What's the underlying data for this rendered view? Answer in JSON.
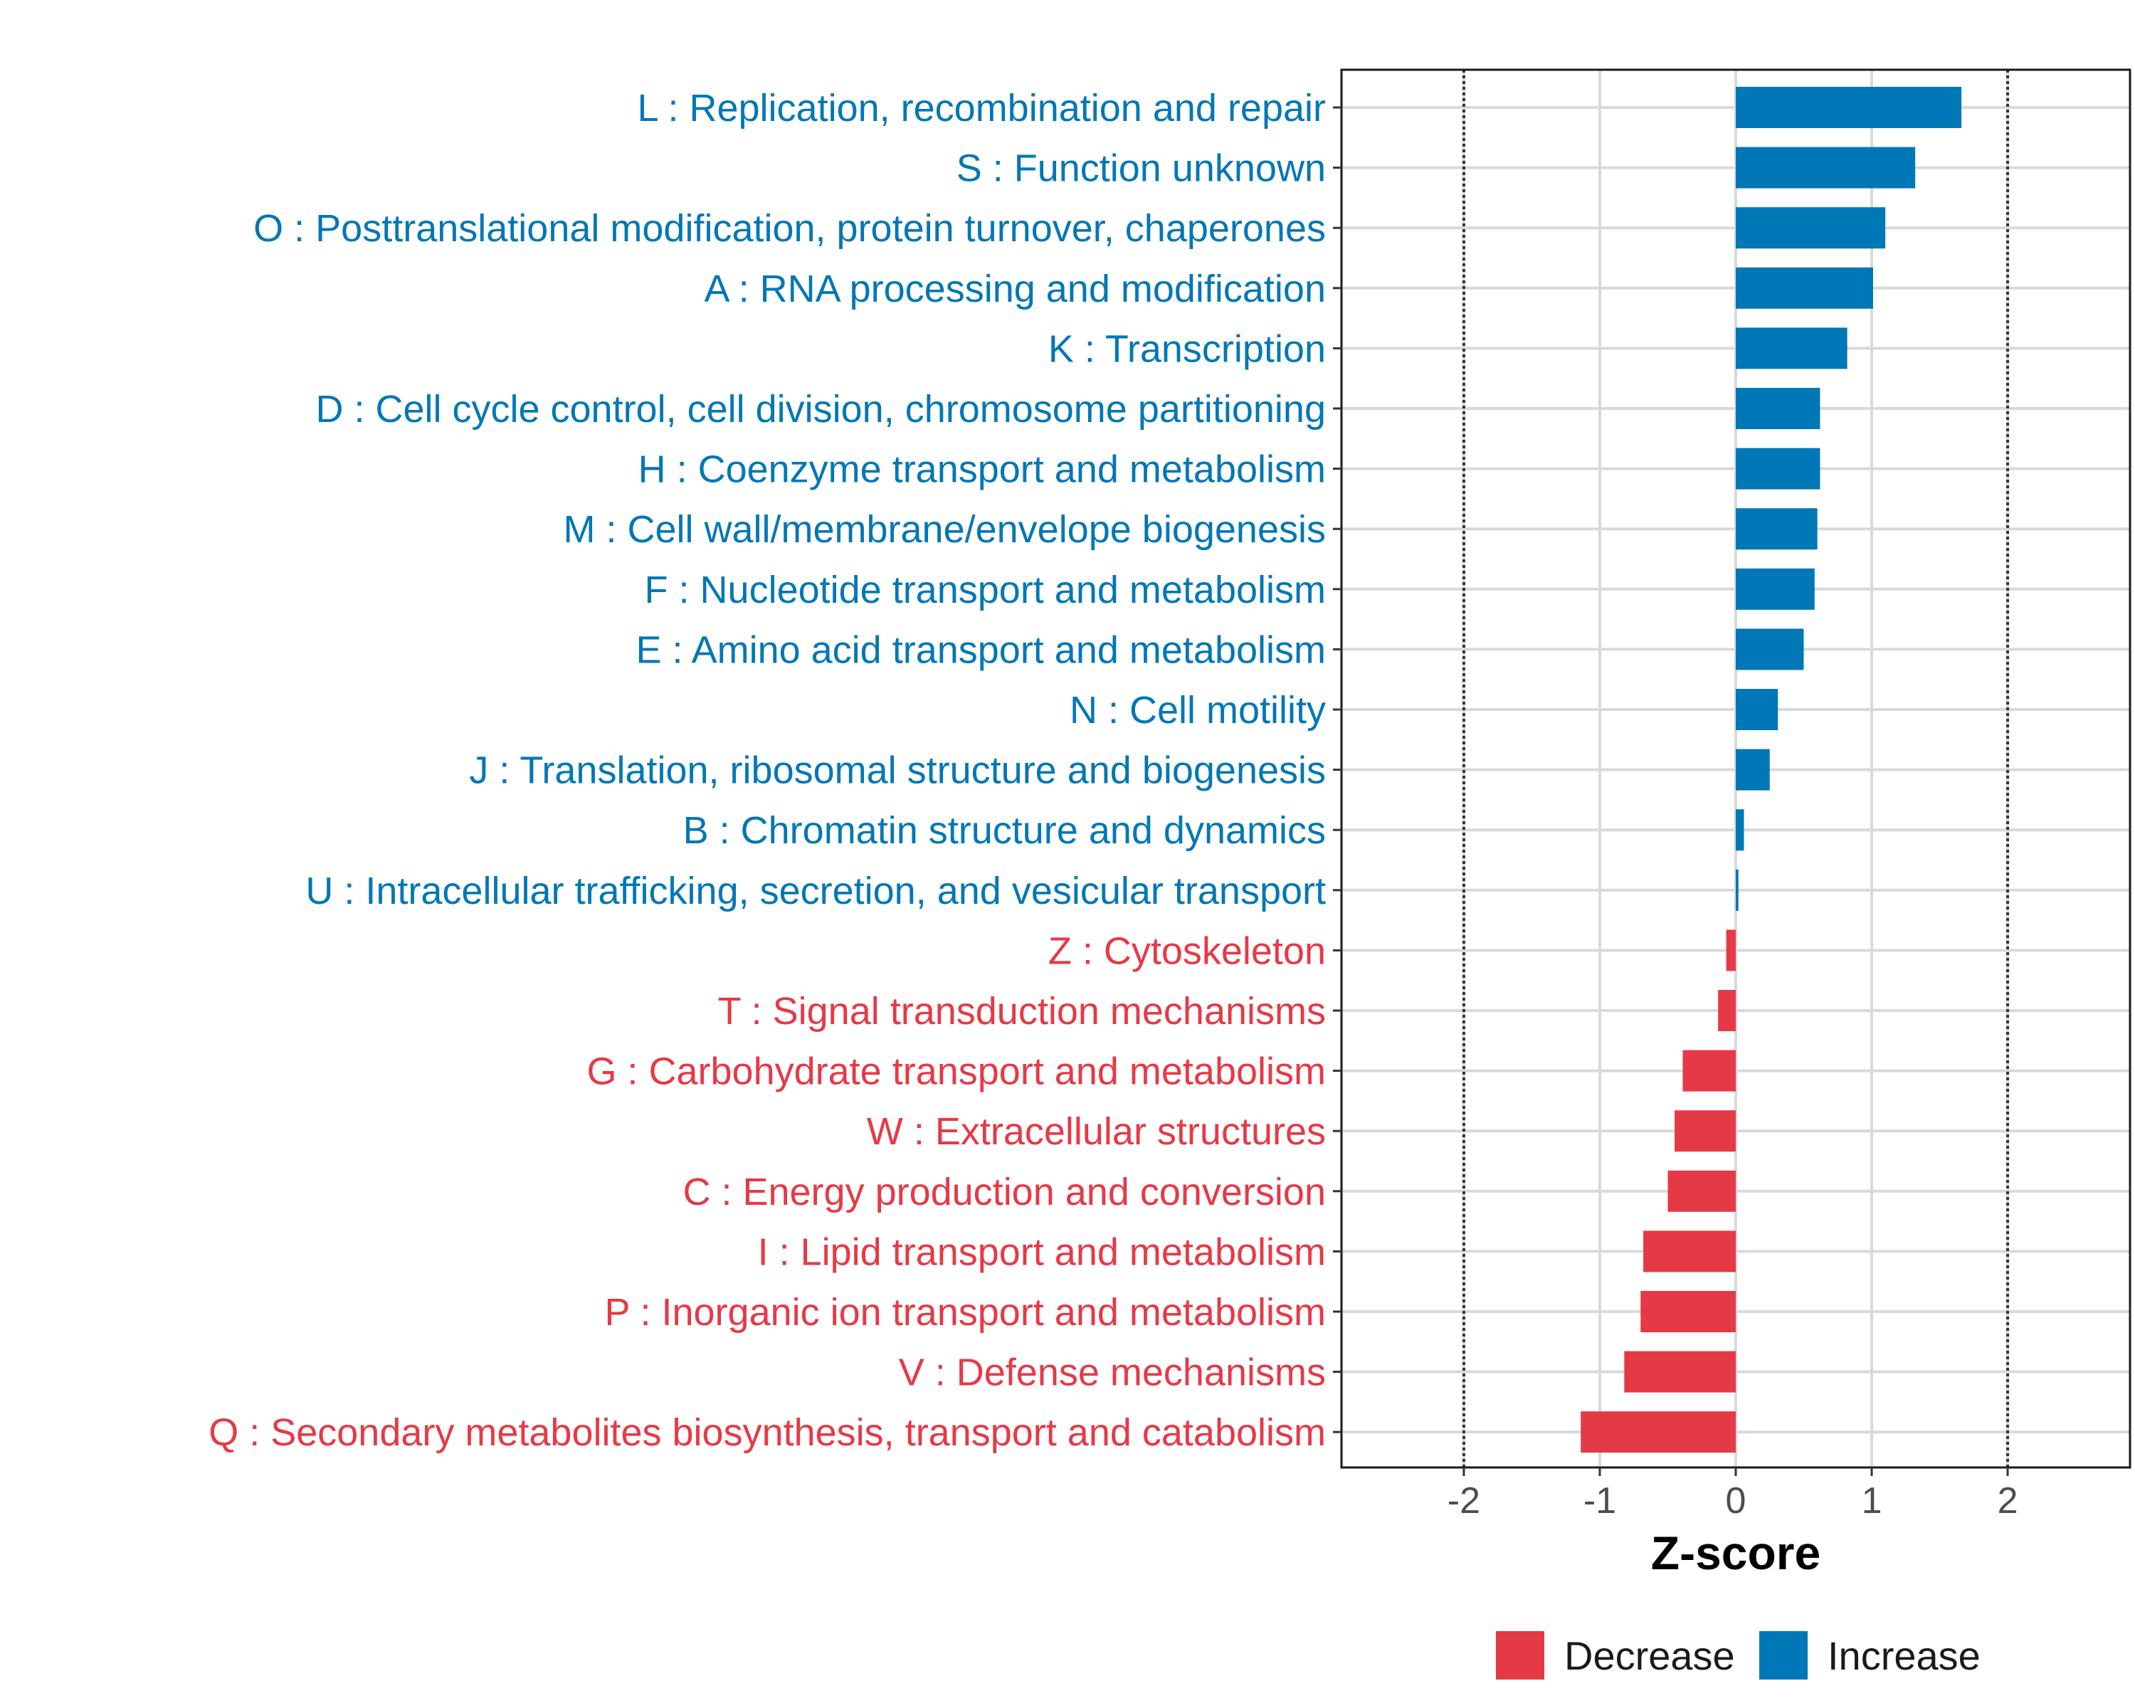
{
  "chart_data": {
    "type": "bar",
    "orientation": "horizontal",
    "title": "",
    "xlabel": "Z-score",
    "ylabel": "",
    "xlim": [
      -2.9,
      2.9
    ],
    "xticks": [
      -2,
      -1,
      0,
      1,
      2
    ],
    "xtick_labels": [
      "-2",
      "-1",
      "0",
      "1",
      "2"
    ],
    "reference_lines": [
      -2,
      2
    ],
    "categories": [
      "L : Replication, recombination and repair",
      "S : Function unknown",
      "O : Posttranslational modification, protein turnover, chaperones",
      "A : RNA processing and modification",
      "K : Transcription",
      "D : Cell cycle control, cell division, chromosome partitioning",
      "H : Coenzyme transport and metabolism",
      "M : Cell wall/membrane/envelope biogenesis",
      "F : Nucleotide transport and metabolism",
      "E : Amino acid transport and metabolism",
      "N : Cell motility",
      "J : Translation, ribosomal structure and biogenesis",
      "B : Chromatin structure and dynamics",
      "U : Intracellular trafficking, secretion, and vesicular transport",
      "Z : Cytoskeleton",
      "T : Signal transduction mechanisms",
      "G : Carbohydrate transport and metabolism",
      "W : Extracellular structures",
      "C : Energy production and conversion",
      "I : Lipid transport and metabolism",
      "P : Inorganic ion transport and metabolism",
      "V : Defense mechanisms",
      "Q : Secondary metabolites biosynthesis, transport and catabolism"
    ],
    "values": [
      1.66,
      1.32,
      1.1,
      1.01,
      0.82,
      0.62,
      0.62,
      0.6,
      0.58,
      0.5,
      0.31,
      0.25,
      0.06,
      0.02,
      -0.07,
      -0.13,
      -0.39,
      -0.45,
      -0.5,
      -0.68,
      -0.7,
      -0.82,
      -1.14
    ],
    "groups": [
      "Increase",
      "Increase",
      "Increase",
      "Increase",
      "Increase",
      "Increase",
      "Increase",
      "Increase",
      "Increase",
      "Increase",
      "Increase",
      "Increase",
      "Increase",
      "Increase",
      "Decrease",
      "Decrease",
      "Decrease",
      "Decrease",
      "Decrease",
      "Decrease",
      "Decrease",
      "Decrease",
      "Decrease"
    ],
    "legend": {
      "position": "bottom",
      "entries": [
        {
          "label": "Decrease",
          "color": "#e63946"
        },
        {
          "label": "Increase",
          "color": "#0077b6"
        }
      ]
    },
    "colors": {
      "Increase": "#0077b6",
      "Decrease": "#e63946"
    },
    "grid": true
  }
}
